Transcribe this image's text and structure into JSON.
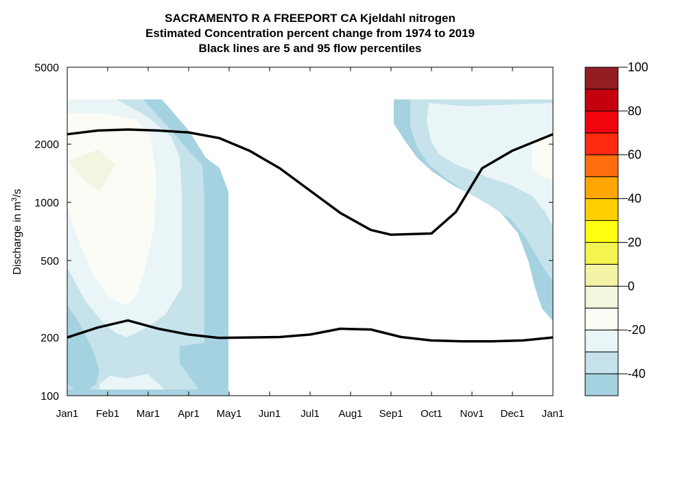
{
  "chart_data": {
    "type": "heatmap",
    "title_lines": [
      "SACRAMENTO R A FREEPORT CA  Kjeldahl nitrogen",
      "Estimated Concentration percent change from 1974 to 2019",
      "Black lines are 5 and 95 flow percentiles"
    ],
    "ylabel": {
      "prefix": "Discharge in m",
      "sup": "3",
      "suffix": "/s"
    },
    "y_scale": "log",
    "ylim": [
      100,
      5000
    ],
    "y_ticks": [
      100,
      200,
      500,
      1000,
      2000,
      5000
    ],
    "x_ticks": [
      "Jan1",
      "Feb1",
      "Mar1",
      "Apr1",
      "May1",
      "Jun1",
      "Jul1",
      "Aug1",
      "Sep1",
      "Oct1",
      "Nov1",
      "Dec1",
      "Jan1"
    ],
    "x_range_months": [
      0,
      12
    ],
    "colorbar": {
      "ticks": [
        "100",
        "80",
        "60",
        "40",
        "20",
        "0",
        "-20",
        "-40"
      ],
      "range": [
        -50,
        100
      ],
      "levels": [
        {
          "from": -50,
          "to": -40,
          "color": "#a5d2e0"
        },
        {
          "from": -40,
          "to": -30,
          "color": "#c6e2ea"
        },
        {
          "from": -30,
          "to": -20,
          "color": "#eaf5f8"
        },
        {
          "from": -20,
          "to": -10,
          "color": "#fbfcf5"
        },
        {
          "from": -10,
          "to": 0,
          "color": "#f2f5e0"
        },
        {
          "from": 0,
          "to": 10,
          "color": "#f4f3a6"
        },
        {
          "from": 10,
          "to": 20,
          "color": "#f4f450"
        },
        {
          "from": 20,
          "to": 30,
          "color": "#ffff0f"
        },
        {
          "from": 30,
          "to": 40,
          "color": "#ffd000"
        },
        {
          "from": 40,
          "to": 50,
          "color": "#ffa605"
        },
        {
          "from": 50,
          "to": 60,
          "color": "#ff6d0f"
        },
        {
          "from": 60,
          "to": 70,
          "color": "#ff2a0f"
        },
        {
          "from": 70,
          "to": 80,
          "color": "#f0050f"
        },
        {
          "from": 80,
          "to": 90,
          "color": "#c5000f"
        },
        {
          "from": 90,
          "to": 100,
          "color": "#941c23"
        }
      ]
    },
    "series": [
      {
        "name": "95 flow percentile",
        "color": "#000000",
        "points": [
          [
            0.0,
            2250
          ],
          [
            0.75,
            2350
          ],
          [
            1.5,
            2380
          ],
          [
            2.25,
            2350
          ],
          [
            3.0,
            2300
          ],
          [
            3.75,
            2150
          ],
          [
            4.5,
            1850
          ],
          [
            5.25,
            1500
          ],
          [
            6.0,
            1150
          ],
          [
            6.75,
            880
          ],
          [
            7.5,
            720
          ],
          [
            8.0,
            680
          ],
          [
            9.0,
            690
          ],
          [
            9.6,
            890
          ],
          [
            10.25,
            1500
          ],
          [
            11.0,
            1850
          ],
          [
            12.0,
            2250
          ]
        ]
      },
      {
        "name": "5 flow percentile",
        "color": "#000000",
        "points": [
          [
            0.0,
            200
          ],
          [
            0.75,
            225
          ],
          [
            1.5,
            245
          ],
          [
            2.25,
            222
          ],
          [
            3.0,
            207
          ],
          [
            3.75,
            199
          ],
          [
            4.5,
            200
          ],
          [
            5.25,
            201
          ],
          [
            6.0,
            207
          ],
          [
            6.75,
            222
          ],
          [
            7.5,
            220
          ],
          [
            8.25,
            201
          ],
          [
            9.0,
            193
          ],
          [
            9.75,
            191
          ],
          [
            10.5,
            191
          ],
          [
            11.25,
            193
          ],
          [
            12.0,
            200
          ]
        ]
      }
    ]
  }
}
